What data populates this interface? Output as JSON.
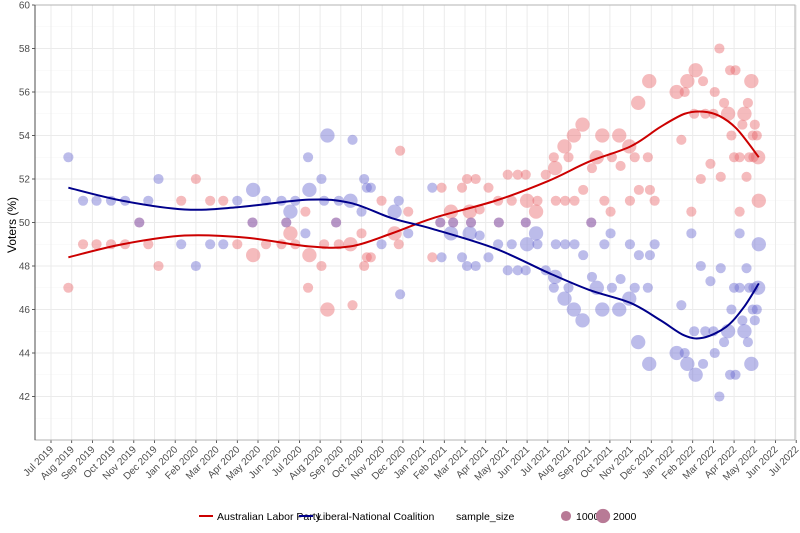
{
  "chart_data": {
    "type": "scatter",
    "title": "",
    "xlabel": "",
    "ylabel": "Voters (%)",
    "ylim": [
      40,
      60
    ],
    "xlim": [
      "2019-06-08",
      "2022-06-29"
    ],
    "grid": true,
    "y_ticks": [
      42,
      44,
      46,
      48,
      50,
      52,
      54,
      56,
      58,
      60
    ],
    "x_tick_labels": [
      "Jul 2019",
      "Aug 2019",
      "Sep 2019",
      "Oct 2019",
      "Nov 2019",
      "Dec 2019",
      "Jan 2020",
      "Feb 2020",
      "Mar 2020",
      "Apr 2020",
      "May 2020",
      "Jun 2020",
      "Jul 2020",
      "Aug 2020",
      "Sep 2020",
      "Oct 2020",
      "Nov 2020",
      "Dec 2020",
      "Jan 2021",
      "Feb 2021",
      "Mar 2021",
      "Apr 2021",
      "May 2021",
      "Jun 2021",
      "Jul 2021",
      "Aug 2021",
      "Sep 2021",
      "Oct 2021",
      "Nov 2021",
      "Dec 2021",
      "Jan 2022",
      "Feb 2022",
      "Mar 2022",
      "Apr 2022",
      "May 2022",
      "Jun 2022",
      "Jul 2022"
    ],
    "legend_position": "bottom",
    "legend": {
      "series_labels": [
        "Australian Labor Party",
        "Liberal-National Coalition"
      ],
      "size_title": "sample_size",
      "size_labels": [
        "1000",
        "2000"
      ],
      "size_values": [
        1000,
        2000
      ]
    },
    "colors": {
      "alp_point": "#e8686d",
      "lnc_point": "#6b6bd0",
      "alp_line": "#cc0000",
      "lnc_line": "#00008b",
      "legend_point": "#b87a96"
    },
    "polls_columns": [
      "date",
      "alp",
      "lnc",
      "sample_size"
    ],
    "polls": [
      [
        "2019-07-27",
        47,
        53,
        1000
      ],
      [
        "2019-08-18",
        49,
        51,
        1000
      ],
      [
        "2019-09-07",
        49,
        51,
        1000
      ],
      [
        "2019-09-28",
        49,
        51,
        1000
      ],
      [
        "2019-10-19",
        49,
        51,
        1000
      ],
      [
        "2019-11-09",
        50,
        50,
        1000
      ],
      [
        "2019-11-22",
        49,
        51,
        1000
      ],
      [
        "2019-12-07",
        48,
        52,
        1000
      ],
      [
        "2020-01-10",
        51,
        49,
        1000
      ],
      [
        "2020-02-01",
        52,
        48,
        1000
      ],
      [
        "2020-02-21",
        51,
        49,
        1000
      ],
      [
        "2020-03-11",
        51,
        49,
        1000
      ],
      [
        "2020-04-01",
        49,
        51,
        1000
      ],
      [
        "2020-04-23",
        50,
        50,
        1000
      ],
      [
        "2020-04-24",
        48.5,
        51.5,
        2000
      ],
      [
        "2020-05-13",
        49,
        51,
        1000
      ],
      [
        "2020-06-05",
        49,
        51,
        1000
      ],
      [
        "2020-06-12",
        50,
        50,
        1000
      ],
      [
        "2020-06-18",
        49.5,
        50.5,
        2000
      ],
      [
        "2020-06-25",
        49,
        51,
        1000
      ],
      [
        "2020-07-10",
        50.5,
        49.5,
        1000
      ],
      [
        "2020-07-14",
        47,
        53,
        1000
      ],
      [
        "2020-07-16",
        48.5,
        51.5,
        2000
      ],
      [
        "2020-08-03",
        48,
        52,
        1000
      ],
      [
        "2020-08-07",
        49,
        51,
        1000
      ],
      [
        "2020-08-12",
        46,
        54,
        2000
      ],
      [
        "2020-08-25",
        50,
        50,
        1000
      ],
      [
        "2020-08-29",
        49,
        51,
        1000
      ],
      [
        "2020-09-15",
        49,
        51,
        2000
      ],
      [
        "2020-09-18",
        46.2,
        53.8,
        1000
      ],
      [
        "2020-10-01",
        49.5,
        50.5,
        1000
      ],
      [
        "2020-10-05",
        48,
        52,
        1000
      ],
      [
        "2020-10-09",
        48.4,
        51.6,
        1000
      ],
      [
        "2020-10-15",
        48.4,
        51.6,
        1000
      ],
      [
        "2020-10-31",
        51,
        49,
        1000
      ],
      [
        "2020-11-19",
        49.5,
        50.5,
        2000
      ],
      [
        "2020-11-25",
        49,
        51,
        1000
      ],
      [
        "2020-11-27",
        53.3,
        46.7,
        1000
      ],
      [
        "2020-12-09",
        50.5,
        49.5,
        1000
      ],
      [
        "2021-01-14",
        48.4,
        51.6,
        1000
      ],
      [
        "2021-01-26",
        50,
        50,
        1000
      ],
      [
        "2021-01-28",
        51.6,
        48.4,
        1000
      ],
      [
        "2021-02-10",
        50.5,
        49.5,
        2000
      ],
      [
        "2021-02-13",
        50,
        50,
        1000
      ],
      [
        "2021-02-25",
        51.6,
        48.4,
        1000
      ],
      [
        "2021-03-04",
        52,
        48,
        1000
      ],
      [
        "2021-03-08",
        50.5,
        49.5,
        2000
      ],
      [
        "2021-03-10",
        50,
        50,
        1000
      ],
      [
        "2021-03-17",
        52,
        48,
        1000
      ],
      [
        "2021-03-23",
        50.6,
        49.4,
        1000
      ],
      [
        "2021-04-05",
        51.6,
        48.4,
        1000
      ],
      [
        "2021-04-19",
        51,
        49,
        1000
      ],
      [
        "2021-04-20",
        50,
        50,
        1000
      ],
      [
        "2021-05-03",
        52.2,
        47.8,
        1000
      ],
      [
        "2021-05-09",
        51,
        49,
        1000
      ],
      [
        "2021-05-18",
        52.2,
        47.8,
        1000
      ],
      [
        "2021-05-30",
        52.2,
        47.8,
        1000
      ],
      [
        "2021-05-30",
        50,
        50,
        1000
      ],
      [
        "2021-06-01",
        51,
        49,
        2000
      ],
      [
        "2021-06-14",
        50.5,
        49.5,
        2000
      ],
      [
        "2021-06-16",
        51,
        49,
        1000
      ],
      [
        "2021-06-28",
        52.2,
        47.8,
        1000
      ],
      [
        "2021-07-10",
        53,
        47,
        1000
      ],
      [
        "2021-07-12",
        52.5,
        47.5,
        2000
      ],
      [
        "2021-07-13",
        51,
        49,
        1000
      ],
      [
        "2021-07-26",
        53.5,
        46.5,
        2000
      ],
      [
        "2021-07-27",
        51,
        49,
        1000
      ],
      [
        "2021-08-01",
        53,
        47,
        1000
      ],
      [
        "2021-08-09",
        54,
        46,
        2000
      ],
      [
        "2021-08-10",
        51,
        49,
        1000
      ],
      [
        "2021-08-22",
        54.5,
        45.5,
        2000
      ],
      [
        "2021-08-23",
        51.5,
        48.5,
        1000
      ],
      [
        "2021-09-04",
        50,
        50,
        1000
      ],
      [
        "2021-09-05",
        52.5,
        47.5,
        1000
      ],
      [
        "2021-09-12",
        53,
        47,
        2000
      ],
      [
        "2021-09-20",
        54,
        46,
        2000
      ],
      [
        "2021-09-23",
        51,
        49,
        1000
      ],
      [
        "2021-10-02",
        50.5,
        49.5,
        1000
      ],
      [
        "2021-10-04",
        53,
        47,
        1000
      ],
      [
        "2021-10-15",
        54,
        46,
        2000
      ],
      [
        "2021-10-17",
        52.6,
        47.4,
        1000
      ],
      [
        "2021-10-30",
        53.5,
        46.5,
        2000
      ],
      [
        "2021-10-31",
        51,
        49,
        1000
      ],
      [
        "2021-11-07",
        53,
        47,
        1000
      ],
      [
        "2021-11-12",
        55.5,
        44.5,
        2000
      ],
      [
        "2021-11-13",
        51.5,
        48.5,
        1000
      ],
      [
        "2021-11-26",
        53,
        47,
        1000
      ],
      [
        "2021-11-28",
        56.5,
        43.5,
        2000
      ],
      [
        "2021-11-29",
        51.5,
        48.5,
        1000
      ],
      [
        "2021-12-06",
        51,
        49,
        1000
      ],
      [
        "2022-01-08",
        56,
        44,
        2000
      ],
      [
        "2022-01-15",
        53.8,
        46.2,
        1000
      ],
      [
        "2022-01-20",
        56,
        44,
        1000
      ],
      [
        "2022-01-24",
        56.5,
        43.5,
        2000
      ],
      [
        "2022-01-30",
        50.5,
        49.5,
        1000
      ],
      [
        "2022-02-03",
        55,
        45,
        1000
      ],
      [
        "2022-02-05",
        57,
        43,
        2000
      ],
      [
        "2022-02-12",
        52,
        48,
        1000
      ],
      [
        "2022-02-15",
        56.5,
        43.5,
        1000
      ],
      [
        "2022-02-18",
        55,
        45,
        1000
      ],
      [
        "2022-02-25",
        52.7,
        47.3,
        1000
      ],
      [
        "2022-03-01",
        55,
        45,
        1000
      ],
      [
        "2022-03-03",
        56,
        44,
        1000
      ],
      [
        "2022-03-10",
        58,
        42,
        1000
      ],
      [
        "2022-03-12",
        52.1,
        47.9,
        1000
      ],
      [
        "2022-03-17",
        55.5,
        44.5,
        1000
      ],
      [
        "2022-03-23",
        55,
        45,
        2000
      ],
      [
        "2022-03-26",
        57,
        43,
        1000
      ],
      [
        "2022-03-28",
        54,
        46,
        1000
      ],
      [
        "2022-04-01",
        53,
        47,
        1000
      ],
      [
        "2022-04-03",
        57,
        43,
        1000
      ],
      [
        "2022-04-09",
        50.5,
        49.5,
        1000
      ],
      [
        "2022-04-09",
        53,
        47,
        1000
      ],
      [
        "2022-04-13",
        54.5,
        45.5,
        1000
      ],
      [
        "2022-04-16",
        55,
        45,
        2000
      ],
      [
        "2022-04-19",
        52.1,
        47.9,
        1000
      ],
      [
        "2022-04-21",
        55.5,
        44.5,
        1000
      ],
      [
        "2022-04-23",
        53,
        47,
        1000
      ],
      [
        "2022-04-26",
        56.5,
        43.5,
        2000
      ],
      [
        "2022-04-28",
        54,
        46,
        1000
      ],
      [
        "2022-04-29",
        53,
        47,
        1000
      ],
      [
        "2022-05-01",
        54.5,
        45.5,
        1000
      ],
      [
        "2022-05-04",
        54,
        46,
        1000
      ],
      [
        "2022-05-06",
        53,
        47,
        2000
      ],
      [
        "2022-05-07",
        51,
        49,
        2000
      ]
    ],
    "series": [
      {
        "name": "Australian Labor Party",
        "x": [
          "2019-07-27",
          "2019-10-15",
          "2020-01-15",
          "2020-04-15",
          "2020-07-15",
          "2020-09-15",
          "2020-11-15",
          "2021-01-15",
          "2021-04-15",
          "2021-07-01",
          "2021-09-01",
          "2021-11-01",
          "2021-12-15",
          "2022-01-20",
          "2022-02-15",
          "2022-03-10",
          "2022-04-05",
          "2022-05-07"
        ],
        "values": [
          48.4,
          49.0,
          49.4,
          49.3,
          48.9,
          48.9,
          49.5,
          50.2,
          51.0,
          51.9,
          52.8,
          53.5,
          54.4,
          55.0,
          55.1,
          54.9,
          54.3,
          53.0
        ]
      },
      {
        "name": "Liberal-National Coalition",
        "x": [
          "2019-07-27",
          "2019-10-15",
          "2020-01-15",
          "2020-04-01",
          "2020-07-15",
          "2020-09-15",
          "2020-11-15",
          "2021-01-15",
          "2021-04-15",
          "2021-07-01",
          "2021-09-01",
          "2021-11-01",
          "2021-12-15",
          "2022-01-20",
          "2022-02-15",
          "2022-03-20",
          "2022-04-15",
          "2022-05-07"
        ],
        "values": [
          51.6,
          51.0,
          50.6,
          50.7,
          51.05,
          50.9,
          50.2,
          49.7,
          48.8,
          47.7,
          46.9,
          46.3,
          45.5,
          44.8,
          44.7,
          45.2,
          46.1,
          47.2
        ]
      }
    ]
  }
}
